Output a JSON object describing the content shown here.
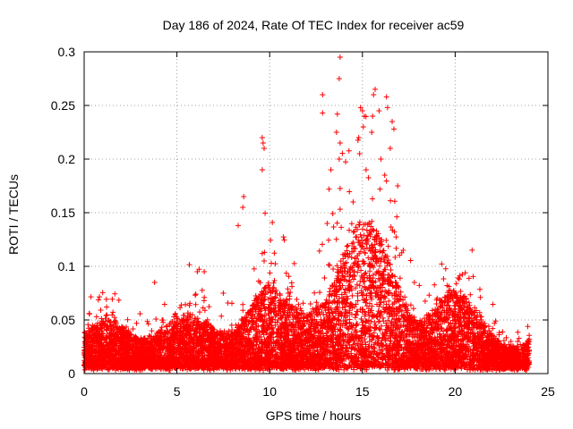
{
  "chart_data": {
    "type": "scatter",
    "title": "Day 186 of 2024, Rate Of TEC Index for receiver ac59",
    "xlabel": "GPS time / hours",
    "ylabel": "ROTI / TECUs",
    "xlim": [
      0,
      25
    ],
    "ylim": [
      0,
      0.3
    ],
    "xticks": [
      0,
      5,
      10,
      15,
      20,
      25
    ],
    "yticks": [
      0,
      0.05,
      0.1,
      0.15,
      0.2,
      0.25,
      0.3
    ],
    "xtick_labels": [
      "0",
      "5",
      "10",
      "15",
      "20",
      "25"
    ],
    "ytick_labels": [
      "0",
      "0.05",
      "0.1",
      "0.15",
      "0.2",
      "0.25",
      "0.3"
    ],
    "grid": true,
    "marker": "+",
    "color": "#ff0000",
    "x_range_of_data": [
      0,
      24
    ],
    "outliers": [
      {
        "x": 3.8,
        "y": 0.085
      },
      {
        "x": 6.1,
        "y": 0.095
      },
      {
        "x": 8.3,
        "y": 0.138
      },
      {
        "x": 8.6,
        "y": 0.165
      },
      {
        "x": 8.55,
        "y": 0.155
      },
      {
        "x": 9.6,
        "y": 0.22
      },
      {
        "x": 9.65,
        "y": 0.215
      },
      {
        "x": 9.6,
        "y": 0.19
      },
      {
        "x": 9.7,
        "y": 0.21
      },
      {
        "x": 9.6,
        "y": 0.112
      },
      {
        "x": 9.7,
        "y": 0.105
      },
      {
        "x": 12.85,
        "y": 0.26
      },
      {
        "x": 12.85,
        "y": 0.243
      },
      {
        "x": 13.2,
        "y": 0.172
      },
      {
        "x": 13.3,
        "y": 0.19
      },
      {
        "x": 13.6,
        "y": 0.225
      },
      {
        "x": 13.65,
        "y": 0.242
      },
      {
        "x": 13.75,
        "y": 0.275
      },
      {
        "x": 13.8,
        "y": 0.295
      },
      {
        "x": 13.8,
        "y": 0.215
      },
      {
        "x": 13.75,
        "y": 0.2
      },
      {
        "x": 14.9,
        "y": 0.248
      },
      {
        "x": 15.0,
        "y": 0.245
      },
      {
        "x": 15.1,
        "y": 0.24
      },
      {
        "x": 15.05,
        "y": 0.23
      },
      {
        "x": 14.8,
        "y": 0.22
      },
      {
        "x": 14.85,
        "y": 0.205
      },
      {
        "x": 15.6,
        "y": 0.26
      },
      {
        "x": 15.55,
        "y": 0.24
      },
      {
        "x": 15.5,
        "y": 0.225
      },
      {
        "x": 15.9,
        "y": 0.245
      },
      {
        "x": 16.3,
        "y": 0.258
      },
      {
        "x": 16.35,
        "y": 0.248
      },
      {
        "x": 16.6,
        "y": 0.235
      },
      {
        "x": 16.7,
        "y": 0.228
      },
      {
        "x": 16.0,
        "y": 0.2
      },
      {
        "x": 16.2,
        "y": 0.185
      },
      {
        "x": 16.5,
        "y": 0.21
      },
      {
        "x": 16.9,
        "y": 0.175
      },
      {
        "x": 15.2,
        "y": 0.19
      },
      {
        "x": 14.5,
        "y": 0.16
      },
      {
        "x": 13.1,
        "y": 0.14
      },
      {
        "x": 17.2,
        "y": 0.115
      },
      {
        "x": 17.8,
        "y": 0.085
      },
      {
        "x": 20.6,
        "y": 0.07
      },
      {
        "x": 20.3,
        "y": 0.06
      },
      {
        "x": 21.0,
        "y": 0.045
      },
      {
        "x": 12.2,
        "y": 0.065
      },
      {
        "x": 11.0,
        "y": 0.075
      },
      {
        "x": 4.9,
        "y": 0.055
      },
      {
        "x": 7.5,
        "y": 0.075
      }
    ]
  }
}
